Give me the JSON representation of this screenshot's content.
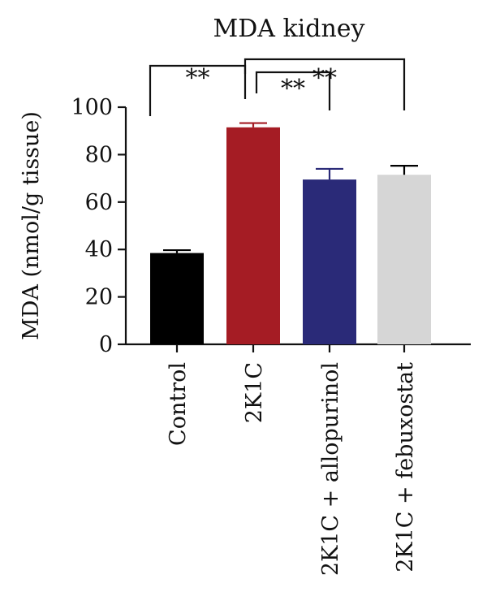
{
  "chart_data": {
    "type": "bar",
    "title": "MDA kidney",
    "xlabel": "",
    "ylabel": "MDA (nmol/g tissue)",
    "ylim": [
      0,
      100
    ],
    "yticks": [
      "0",
      "20",
      "40",
      "60",
      "80",
      "100"
    ],
    "categories": [
      "Control",
      "2K1C",
      "2K1C + allopurinol",
      "2K1C + febuxostat"
    ],
    "values": [
      38.5,
      91.5,
      69.5,
      71.5
    ],
    "error": [
      1.2,
      1.8,
      4.5,
      3.8
    ],
    "colors": [
      "#000000",
      "#a51c24",
      "#2a2a78",
      "#d6d6d6"
    ],
    "error_colors": [
      "#000000",
      "#a51c24",
      "#2a2a78",
      "#000000"
    ],
    "grid": false,
    "significance": [
      {
        "from": 0,
        "to": 1,
        "label": "**"
      },
      {
        "from": 1,
        "to": 2,
        "label": "**"
      },
      {
        "from": 1,
        "to": 3,
        "label": "**"
      }
    ]
  }
}
